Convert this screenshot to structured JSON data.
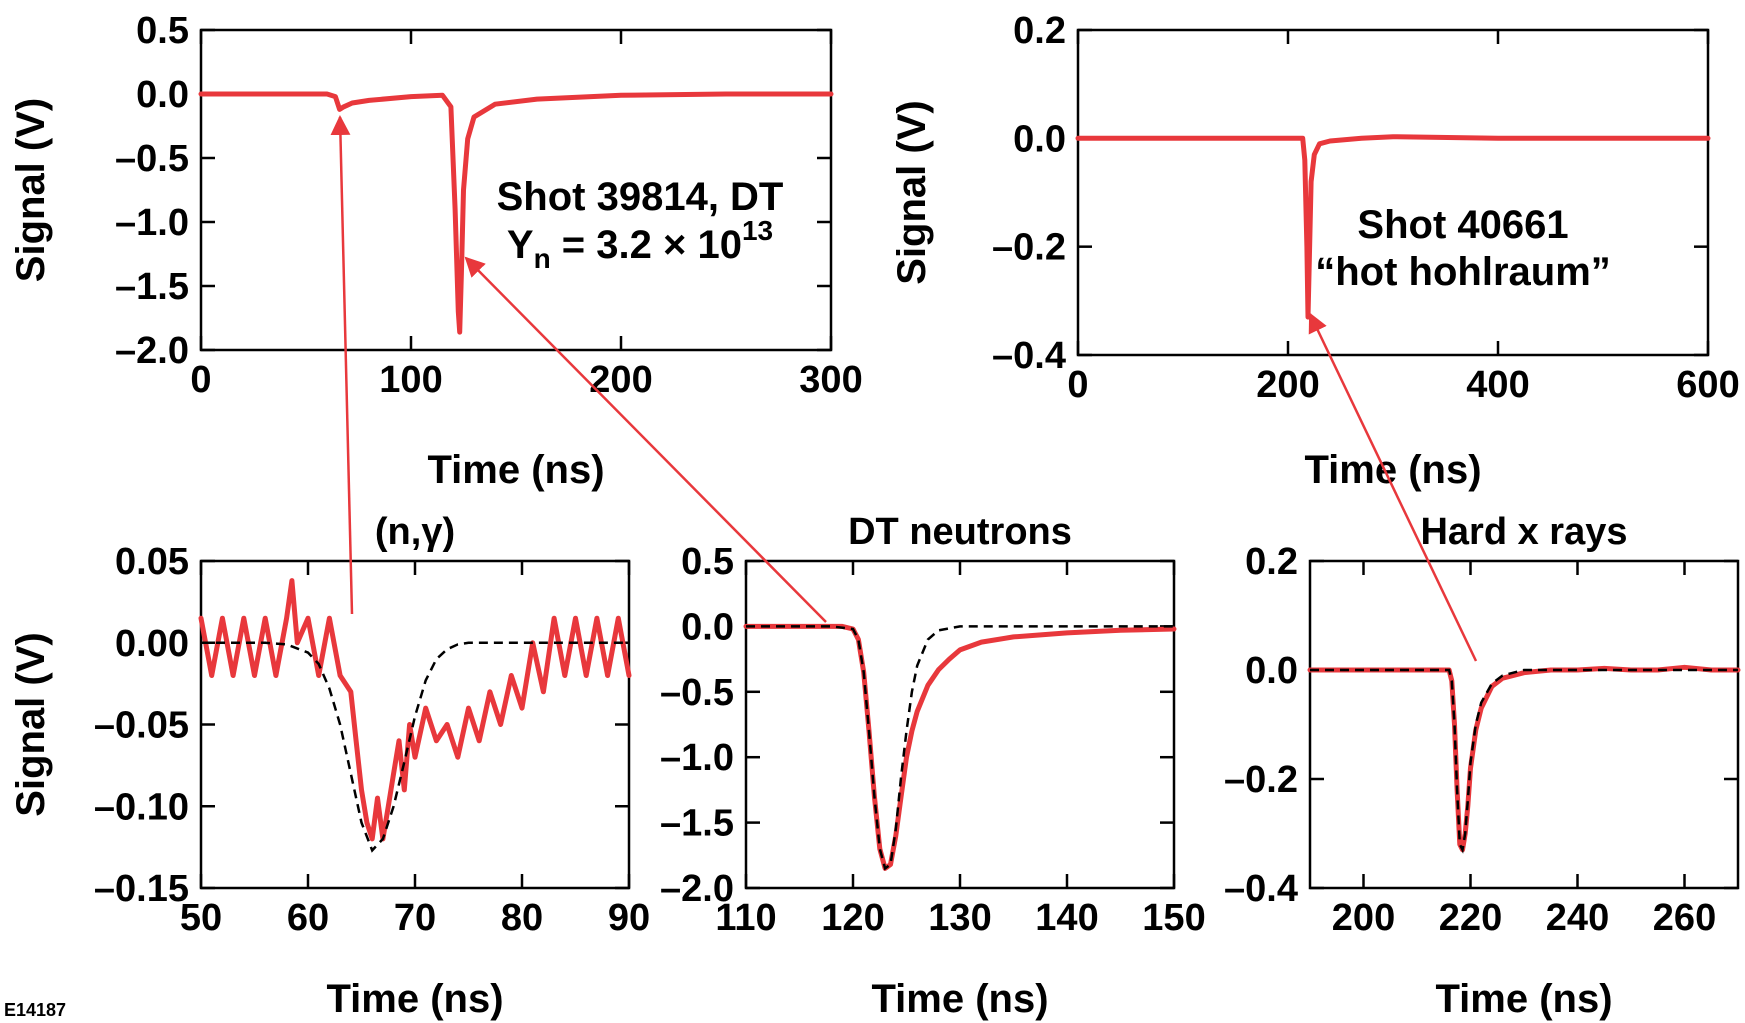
{
  "figure_id": "E14187",
  "colors": {
    "signal": "#e8383c",
    "fit": "#000000",
    "arrow": "#e8383c"
  },
  "chart_data": [
    {
      "id": "shot39814",
      "type": "line",
      "title": "",
      "xlabel": "Time (ns)",
      "ylabel": "Signal (V)",
      "xlim": [
        0,
        300
      ],
      "ylim": [
        -2.0,
        0.5
      ],
      "xticks": [
        "0",
        "100",
        "200",
        "300"
      ],
      "yticks": [
        "0.5",
        "0.0",
        "–0.5",
        "–1.0",
        "–1.5",
        "–2.0"
      ],
      "annotation": [
        "Shot 39814, DT",
        "Y",
        "n",
        " = 3.2 × 10",
        "13"
      ],
      "series": [
        {
          "style": "measured",
          "x": [
            0,
            40,
            60,
            64,
            66,
            68,
            72,
            80,
            100,
            115,
            119,
            121,
            122.5,
            123.2,
            124,
            125,
            127,
            130,
            140,
            160,
            200,
            250,
            300
          ],
          "y": [
            0.0,
            0.0,
            0.0,
            -0.02,
            -0.12,
            -0.1,
            -0.07,
            -0.05,
            -0.02,
            -0.01,
            -0.1,
            -0.9,
            -1.7,
            -1.86,
            -1.4,
            -0.75,
            -0.35,
            -0.18,
            -0.08,
            -0.04,
            -0.01,
            0.0,
            0.0
          ]
        }
      ]
    },
    {
      "id": "shot40661",
      "type": "line",
      "title": "",
      "xlabel": "Time (ns)",
      "ylabel": "Signal (V)",
      "xlim": [
        0,
        600
      ],
      "ylim": [
        -0.4,
        0.2
      ],
      "xticks": [
        "0",
        "200",
        "400",
        "600"
      ],
      "yticks": [
        "0.2",
        "0.0",
        "–0.2",
        "–0.4"
      ],
      "annotation": [
        "Shot 40661",
        "“hot hohlraum”"
      ],
      "series": [
        {
          "style": "measured",
          "x": [
            0,
            100,
            200,
            214,
            216,
            218,
            219,
            220,
            222,
            225,
            230,
            240,
            270,
            300,
            400,
            500,
            600
          ],
          "y": [
            0.0,
            0.0,
            0.0,
            0.0,
            -0.04,
            -0.2,
            -0.33,
            -0.25,
            -0.08,
            -0.03,
            -0.01,
            -0.005,
            0.0,
            0.003,
            0.0,
            0.0,
            0.0
          ]
        }
      ]
    },
    {
      "id": "n-gamma",
      "type": "line",
      "title": "(n,γ)",
      "xlabel": "Time (ns)",
      "ylabel": "Signal (V)",
      "xlim": [
        50,
        90
      ],
      "ylim": [
        -0.15,
        0.05
      ],
      "xticks": [
        "50",
        "60",
        "70",
        "80",
        "90"
      ],
      "yticks": [
        "0.05",
        "0.00",
        "–0.05",
        "–0.10",
        "–0.15"
      ],
      "series": [
        {
          "style": "measured",
          "x": [
            50,
            51,
            52,
            53,
            54,
            55,
            56,
            57,
            58,
            58.5,
            59,
            60,
            61,
            62,
            63,
            64,
            64.5,
            65,
            65.5,
            66,
            66.5,
            67,
            67.5,
            68,
            68.5,
            69,
            69.5,
            70,
            71,
            72,
            73,
            74,
            75,
            76,
            77,
            78,
            79,
            80,
            81,
            82,
            83,
            84,
            85,
            86,
            87,
            88,
            89,
            90
          ],
          "y": [
            0.015,
            -0.02,
            0.015,
            -0.02,
            0.015,
            -0.02,
            0.015,
            -0.02,
            0.015,
            0.038,
            0.0,
            0.015,
            -0.02,
            0.015,
            -0.02,
            -0.03,
            -0.06,
            -0.09,
            -0.11,
            -0.12,
            -0.095,
            -0.12,
            -0.1,
            -0.08,
            -0.06,
            -0.09,
            -0.05,
            -0.07,
            -0.04,
            -0.06,
            -0.05,
            -0.07,
            -0.04,
            -0.06,
            -0.03,
            -0.05,
            -0.02,
            -0.04,
            0.0,
            -0.03,
            0.015,
            -0.02,
            0.015,
            -0.02,
            0.015,
            -0.02,
            0.015,
            -0.02
          ]
        },
        {
          "style": "fit",
          "x": [
            50,
            56,
            58,
            60,
            61,
            62,
            63,
            64,
            65,
            66,
            67,
            68,
            69,
            70,
            71,
            72,
            73,
            74,
            75,
            78,
            90
          ],
          "y": [
            0.0,
            0.0,
            -0.001,
            -0.006,
            -0.013,
            -0.028,
            -0.05,
            -0.08,
            -0.11,
            -0.127,
            -0.12,
            -0.1,
            -0.073,
            -0.045,
            -0.023,
            -0.01,
            -0.004,
            -0.001,
            0.0,
            0.0,
            0.0
          ]
        }
      ]
    },
    {
      "id": "dt-neutrons",
      "type": "line",
      "title": "DT neutrons",
      "xlabel": "Time (ns)",
      "ylabel": "",
      "xlim": [
        110,
        150
      ],
      "ylim": [
        -2.0,
        0.5
      ],
      "xticks": [
        "110",
        "120",
        "130",
        "140",
        "150"
      ],
      "yticks": [
        "0.5",
        "0.0",
        "–0.5",
        "–1.0",
        "–1.5",
        "–2.0"
      ],
      "series": [
        {
          "style": "measured",
          "x": [
            110,
            115,
            119,
            120,
            120.5,
            121,
            121.5,
            122,
            122.5,
            123,
            123.5,
            124,
            124.5,
            125,
            125.5,
            126,
            127,
            128,
            129,
            130,
            132,
            135,
            140,
            145,
            150
          ],
          "y": [
            0.0,
            0.0,
            0.0,
            -0.02,
            -0.1,
            -0.35,
            -0.8,
            -1.3,
            -1.7,
            -1.85,
            -1.82,
            -1.6,
            -1.3,
            -1.0,
            -0.8,
            -0.65,
            -0.45,
            -0.33,
            -0.25,
            -0.18,
            -0.12,
            -0.08,
            -0.05,
            -0.03,
            -0.02
          ]
        },
        {
          "style": "fit",
          "x": [
            110,
            118,
            120,
            120.5,
            121,
            121.5,
            122,
            122.5,
            123,
            123.5,
            124,
            124.5,
            125,
            125.5,
            126,
            127,
            128,
            130,
            150
          ],
          "y": [
            0.0,
            0.0,
            -0.02,
            -0.1,
            -0.35,
            -0.8,
            -1.3,
            -1.7,
            -1.85,
            -1.82,
            -1.55,
            -1.15,
            -0.8,
            -0.5,
            -0.3,
            -0.1,
            -0.03,
            0.0,
            0.0
          ]
        }
      ]
    },
    {
      "id": "hard-xrays",
      "type": "line",
      "title": "Hard x rays",
      "xlabel": "Time (ns)",
      "ylabel": "",
      "xlim": [
        190,
        270
      ],
      "ylim": [
        -0.4,
        0.2
      ],
      "xticks": [
        "200",
        "220",
        "240",
        "260"
      ],
      "yticks": [
        "0.2",
        "0.0",
        "–0.2",
        "–0.4"
      ],
      "series": [
        {
          "style": "measured",
          "x": [
            190,
            200,
            210,
            216,
            216.5,
            217,
            217.5,
            218,
            218.5,
            219,
            219.5,
            220,
            221,
            222,
            224,
            226,
            228,
            230,
            235,
            240,
            245,
            250,
            255,
            260,
            265,
            270
          ],
          "y": [
            0.0,
            0.0,
            0.0,
            0.0,
            -0.02,
            -0.1,
            -0.22,
            -0.32,
            -0.33,
            -0.3,
            -0.25,
            -0.18,
            -0.11,
            -0.07,
            -0.03,
            -0.015,
            -0.01,
            -0.005,
            0.0,
            0.0,
            0.003,
            0.0,
            0.0,
            0.005,
            0.0,
            0.0
          ]
        },
        {
          "style": "fit",
          "x": [
            190,
            216,
            216.5,
            217,
            217.5,
            218,
            218.5,
            219,
            219.5,
            220,
            221,
            222,
            224,
            226,
            228,
            230,
            270
          ],
          "y": [
            0.0,
            0.0,
            -0.02,
            -0.1,
            -0.22,
            -0.32,
            -0.33,
            -0.3,
            -0.24,
            -0.17,
            -0.1,
            -0.06,
            -0.025,
            -0.01,
            -0.005,
            0.0,
            0.0
          ]
        }
      ]
    }
  ]
}
